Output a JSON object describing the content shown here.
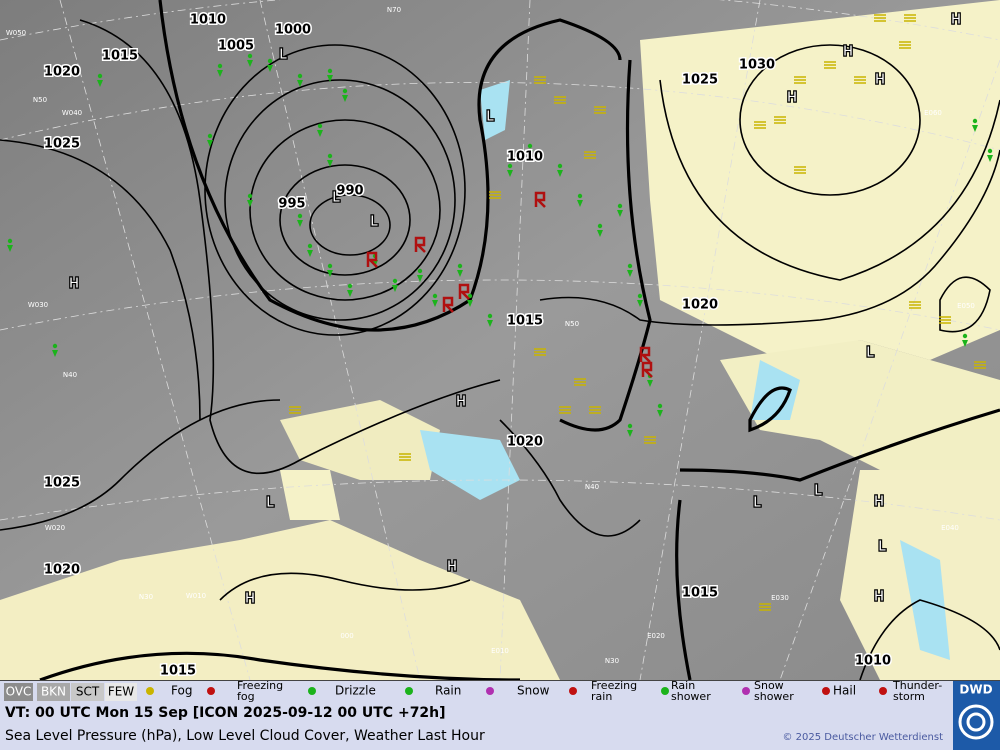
{
  "map": {
    "isobar_labels": [
      "1010",
      "1000",
      "1005",
      "1015",
      "1020",
      "1025",
      "1030",
      "1025",
      "995",
      "990",
      "1010",
      "1015",
      "1020",
      "1020",
      "1025",
      "1020",
      "1015",
      "1015",
      "1010"
    ],
    "pressure_centers": [
      "L",
      "L",
      "L",
      "L",
      "H",
      "H",
      "H",
      "H",
      "H",
      "H",
      "L",
      "L",
      "H",
      "H",
      "L",
      "L",
      "H",
      "L",
      "H"
    ],
    "grid_labels": [
      "W050",
      "W040",
      "N50",
      "W030",
      "N40",
      "W020",
      "W010",
      "N30",
      "000",
      "E010",
      "E020",
      "N30",
      "E030",
      "E040",
      "E050",
      "E060",
      "N70",
      "N50",
      "N40"
    ]
  },
  "legend": {
    "cloud_cover": [
      "OVC",
      "BKN",
      "SCT",
      "FEW"
    ],
    "weather": [
      {
        "lines": [
          "Fog"
        ]
      },
      {
        "lines": [
          "Freezing",
          "fog"
        ]
      },
      {
        "lines": [
          "Drizzle"
        ]
      },
      {
        "lines": [
          "Rain"
        ]
      },
      {
        "lines": [
          "Snow"
        ]
      },
      {
        "lines": [
          "Freezing",
          "rain"
        ]
      },
      {
        "lines": [
          "Rain",
          "shower"
        ]
      },
      {
        "lines": [
          "Snow",
          "shower"
        ]
      },
      {
        "lines": [
          "Hail"
        ]
      },
      {
        "lines": [
          "Thunder-",
          "storm"
        ]
      }
    ]
  },
  "footer": {
    "valid_time": "VT: 00 UTC Mon  15 Sep [ICON 2025-09-12 00 UTC +72h]",
    "description": "Sea Level Pressure (hPa), Low Level Cloud Cover, Weather Last Hour",
    "copyright": "© 2025 Deutscher Wetterdienst",
    "logo": "DWD"
  }
}
